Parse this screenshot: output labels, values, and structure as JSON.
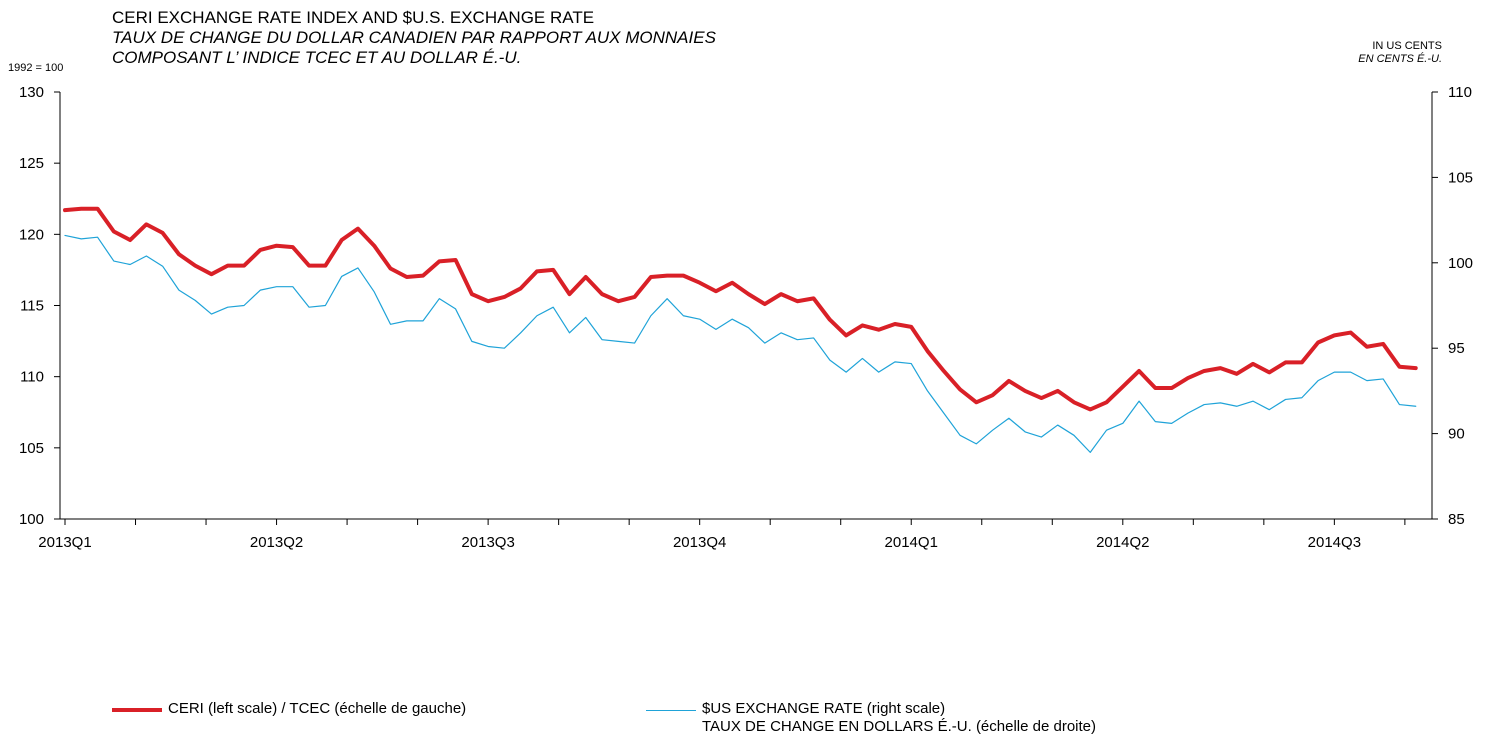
{
  "header": {
    "title_line1": "CERI EXCHANGE RATE INDEX AND $U.S. EXCHANGE RATE",
    "title_line2": "TAUX DE CHANGE DU DOLLAR CANADIEN PAR RAPPORT AUX MONNAIES",
    "title_line3": "COMPOSANT L’ INDICE TCEC ET AU DOLLAR É.-U.",
    "left_unit": "1992 = 100",
    "right_unit_line1": "IN US CENTS",
    "right_unit_line2": "EN CENTS É.-U."
  },
  "legend": {
    "ceri": "CERI (left scale) / TCEC (échelle de gauche)",
    "us_line1": "$US EXCHANGE RATE (right scale)",
    "us_line2": "TAUX DE CHANGE EN DOLLARS É.-U. (échelle de droite)"
  },
  "colors": {
    "ceri": "#d92027",
    "us": "#1fa3d8",
    "axis": "#000000"
  },
  "chart_data": {
    "type": "line",
    "title": "CERI EXCHANGE RATE INDEX AND $U.S. EXCHANGE RATE",
    "x_tick_labels": [
      "2013Q1",
      "2013Q2",
      "2013Q3",
      "2013Q4",
      "2014Q1",
      "2014Q2",
      "2014Q3"
    ],
    "weeks_per_quarter": 13,
    "left_axis": {
      "label": "1992 = 100",
      "ylim": [
        100,
        130
      ],
      "ticks": [
        100,
        105,
        110,
        115,
        120,
        125,
        130
      ]
    },
    "right_axis": {
      "label": "IN US CENTS / EN CENTS É.-U.",
      "ylim": [
        85,
        110
      ],
      "ticks": [
        85,
        90,
        95,
        100,
        105,
        110
      ]
    },
    "grid": false,
    "legend_position": "bottom",
    "series": [
      {
        "name": "CERI (left scale) / TCEC (échelle de gauche)",
        "axis": "left",
        "values": [
          121.7,
          121.8,
          121.8,
          120.2,
          119.6,
          120.7,
          120.1,
          118.6,
          117.8,
          117.2,
          117.8,
          117.8,
          118.9,
          119.2,
          119.1,
          117.8,
          117.8,
          119.6,
          120.4,
          119.2,
          117.6,
          117.0,
          117.1,
          118.1,
          118.2,
          115.8,
          115.3,
          115.6,
          116.2,
          117.4,
          117.5,
          115.8,
          117.0,
          115.8,
          115.3,
          115.6,
          117.0,
          117.1,
          117.1,
          116.6,
          116.0,
          116.6,
          115.8,
          115.1,
          115.8,
          115.3,
          115.5,
          114.0,
          112.9,
          113.6,
          113.3,
          113.7,
          113.5,
          111.8,
          110.4,
          109.1,
          108.2,
          108.7,
          109.7,
          109.0,
          108.5,
          109.0,
          108.2,
          107.7,
          108.2,
          109.3,
          110.4,
          109.2,
          109.2,
          109.9,
          110.4,
          110.6,
          110.2,
          110.9,
          110.3,
          111.0,
          111.0,
          112.4,
          112.9,
          113.1,
          112.1,
          112.3,
          110.7,
          110.6
        ]
      },
      {
        "name": "$US EXCHANGE RATE (right scale) TAUX DE CHANGE EN DOLLARS É.-U. (échelle de droite)",
        "axis": "right",
        "values": [
          101.6,
          101.4,
          101.5,
          100.1,
          99.9,
          100.4,
          99.8,
          98.4,
          97.8,
          97.0,
          97.4,
          97.5,
          98.4,
          98.6,
          98.6,
          97.4,
          97.5,
          99.2,
          99.7,
          98.3,
          96.4,
          96.6,
          96.6,
          97.9,
          97.3,
          95.4,
          95.1,
          95.0,
          95.9,
          96.9,
          97.4,
          95.9,
          96.8,
          95.5,
          95.4,
          95.3,
          96.9,
          97.9,
          96.9,
          96.7,
          96.1,
          96.7,
          96.2,
          95.3,
          95.9,
          95.5,
          95.6,
          94.3,
          93.6,
          94.4,
          93.6,
          94.2,
          94.1,
          92.5,
          91.2,
          89.9,
          89.4,
          90.2,
          90.9,
          90.1,
          89.8,
          90.5,
          89.9,
          88.9,
          90.2,
          90.6,
          91.9,
          90.7,
          90.6,
          91.2,
          91.7,
          91.8,
          91.6,
          91.9,
          91.4,
          92.0,
          92.1,
          93.1,
          93.6,
          93.6,
          93.1,
          93.2,
          91.7,
          91.6
        ]
      }
    ]
  }
}
